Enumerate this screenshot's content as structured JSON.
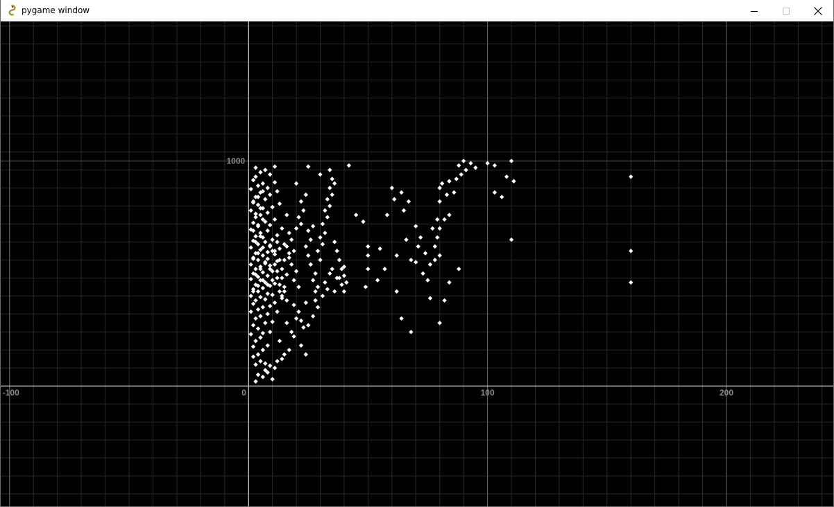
{
  "window": {
    "title": "pygame window",
    "icon": "pygame-snake-icon",
    "controls": {
      "minimize": "minimize-icon",
      "maximize": "maximize-icon",
      "close": "close-icon"
    }
  },
  "chart_data": {
    "type": "scatter",
    "title": "",
    "xlabel": "",
    "ylabel": "",
    "xlim": [
      -104,
      245
    ],
    "ylim": [
      -538,
      1620
    ],
    "x_ticks": [
      -100,
      0,
      100,
      200
    ],
    "y_ticks": [
      1000
    ],
    "grid": true,
    "grid_minor_step_x": 10,
    "grid_minor_step_y": 80,
    "background": "#000000",
    "axis_color": "#ffffff",
    "grid_color": "#2a2a2a",
    "major_grid_color": "#6a6a6a",
    "tick_label_color": "#8a8a8a",
    "point_color": "#ffffff",
    "series": [
      {
        "points": [
          [
            3,
            95
          ],
          [
            5,
            110
          ],
          [
            2,
            130
          ],
          [
            7,
            100
          ],
          [
            4,
            140
          ],
          [
            6,
            160
          ],
          [
            2,
            175
          ],
          [
            8,
            180
          ],
          [
            3,
            200
          ],
          [
            5,
            215
          ],
          [
            1,
            230
          ],
          [
            6,
            235
          ],
          [
            9,
            240
          ],
          [
            4,
            255
          ],
          [
            2,
            270
          ],
          [
            7,
            280
          ],
          [
            10,
            285
          ],
          [
            3,
            300
          ],
          [
            5,
            310
          ],
          [
            8,
            320
          ],
          [
            1,
            330
          ],
          [
            12,
            330
          ],
          [
            4,
            340
          ],
          [
            6,
            350
          ],
          [
            9,
            355
          ],
          [
            2,
            365
          ],
          [
            11,
            370
          ],
          [
            3,
            380
          ],
          [
            7,
            385
          ],
          [
            14,
            390
          ],
          [
            5,
            395
          ],
          [
            1,
            400
          ],
          [
            10,
            405
          ],
          [
            8,
            410
          ],
          [
            4,
            420
          ],
          [
            13,
            420
          ],
          [
            2,
            430
          ],
          [
            6,
            435
          ],
          [
            15,
            440
          ],
          [
            9,
            445
          ],
          [
            3,
            450
          ],
          [
            11,
            455
          ],
          [
            7,
            460
          ],
          [
            5,
            470
          ],
          [
            1,
            475
          ],
          [
            12,
            480
          ],
          [
            4,
            485
          ],
          [
            8,
            490
          ],
          [
            16,
            495
          ],
          [
            2,
            500
          ],
          [
            6,
            505
          ],
          [
            10,
            510
          ],
          [
            3,
            520
          ],
          [
            14,
            520
          ],
          [
            5,
            530
          ],
          [
            9,
            535
          ],
          [
            1,
            540
          ],
          [
            7,
            550
          ],
          [
            12,
            555
          ],
          [
            4,
            560
          ],
          [
            2,
            570
          ],
          [
            17,
            570
          ],
          [
            6,
            580
          ],
          [
            11,
            585
          ],
          [
            3,
            590
          ],
          [
            8,
            595
          ],
          [
            5,
            605
          ],
          [
            13,
            610
          ],
          [
            1,
            615
          ],
          [
            9,
            620
          ],
          [
            4,
            630
          ],
          [
            15,
            630
          ],
          [
            7,
            640
          ],
          [
            2,
            645
          ],
          [
            10,
            650
          ],
          [
            6,
            660
          ],
          [
            3,
            665
          ],
          [
            12,
            670
          ],
          [
            5,
            680
          ],
          [
            8,
            690
          ],
          [
            1,
            695
          ],
          [
            14,
            700
          ],
          [
            4,
            710
          ],
          [
            9,
            715
          ],
          [
            2,
            725
          ],
          [
            7,
            730
          ],
          [
            11,
            740
          ],
          [
            3,
            750
          ],
          [
            5,
            760
          ],
          [
            16,
            760
          ],
          [
            8,
            770
          ],
          [
            1,
            780
          ],
          [
            6,
            790
          ],
          [
            10,
            795
          ],
          [
            4,
            805
          ],
          [
            13,
            810
          ],
          [
            2,
            820
          ],
          [
            7,
            830
          ],
          [
            3,
            840
          ],
          [
            9,
            850
          ],
          [
            5,
            860
          ],
          [
            12,
            865
          ],
          [
            1,
            875
          ],
          [
            8,
            880
          ],
          [
            4,
            890
          ],
          [
            6,
            900
          ],
          [
            11,
            905
          ],
          [
            2,
            915
          ],
          [
            3,
            930
          ],
          [
            9,
            940
          ],
          [
            5,
            950
          ],
          [
            7,
            960
          ],
          [
            3,
            970
          ],
          [
            11,
            975
          ],
          [
            2,
            420
          ],
          [
            4,
            445
          ],
          [
            6,
            470
          ],
          [
            3,
            495
          ],
          [
            5,
            520
          ],
          [
            7,
            545
          ],
          [
            2,
            565
          ],
          [
            4,
            590
          ],
          [
            6,
            615
          ],
          [
            3,
            640
          ],
          [
            5,
            665
          ],
          [
            2,
            690
          ],
          [
            4,
            715
          ],
          [
            6,
            740
          ],
          [
            3,
            765
          ],
          [
            5,
            790
          ],
          [
            2,
            815
          ],
          [
            4,
            840
          ],
          [
            6,
            865
          ],
          [
            8,
            450
          ],
          [
            10,
            470
          ],
          [
            9,
            520
          ],
          [
            11,
            540
          ],
          [
            8,
            565
          ],
          [
            10,
            600
          ],
          [
            9,
            625
          ],
          [
            12,
            640
          ],
          [
            11,
            600
          ],
          [
            13,
            560
          ],
          [
            12,
            510
          ],
          [
            14,
            480
          ],
          [
            13,
            450
          ],
          [
            15,
            420
          ],
          [
            14,
            400
          ],
          [
            16,
            380
          ],
          [
            15,
            560
          ],
          [
            17,
            590
          ],
          [
            16,
            620
          ],
          [
            18,
            650
          ],
          [
            17,
            680
          ],
          [
            19,
            600
          ],
          [
            18,
            540
          ],
          [
            20,
            510
          ],
          [
            19,
            470
          ],
          [
            21,
            440
          ],
          [
            20,
            700
          ],
          [
            22,
            720
          ],
          [
            21,
            750
          ],
          [
            23,
            780
          ],
          [
            22,
            820
          ],
          [
            24,
            850
          ],
          [
            20,
            900
          ],
          [
            25,
            580
          ],
          [
            24,
            620
          ],
          [
            26,
            650
          ],
          [
            25,
            690
          ],
          [
            27,
            710
          ],
          [
            26,
            540
          ],
          [
            28,
            500
          ],
          [
            27,
            470
          ],
          [
            29,
            440
          ],
          [
            28,
            420
          ],
          [
            30,
            560
          ],
          [
            29,
            600
          ],
          [
            31,
            630
          ],
          [
            30,
            660
          ],
          [
            32,
            680
          ],
          [
            31,
            720
          ],
          [
            33,
            750
          ],
          [
            32,
            780
          ],
          [
            34,
            800
          ],
          [
            33,
            830
          ],
          [
            35,
            850
          ],
          [
            34,
            880
          ],
          [
            36,
            900
          ],
          [
            35,
            920
          ],
          [
            30,
            940
          ],
          [
            34,
            960
          ],
          [
            25,
            975
          ],
          [
            26,
            540
          ],
          [
            36,
            640
          ],
          [
            37,
            600
          ],
          [
            38,
            560
          ],
          [
            39,
            520
          ],
          [
            40,
            490
          ],
          [
            41,
            460
          ],
          [
            35,
            520
          ],
          [
            37,
            480
          ],
          [
            39,
            450
          ],
          [
            40,
            420
          ],
          [
            28,
            380
          ],
          [
            31,
            400
          ],
          [
            33,
            430
          ],
          [
            29,
            350
          ],
          [
            24,
            370
          ],
          [
            21,
            330
          ],
          [
            19,
            360
          ],
          [
            27,
            310
          ],
          [
            22,
            290
          ],
          [
            25,
            270
          ],
          [
            36,
            420
          ],
          [
            38,
            480
          ],
          [
            32,
            460
          ],
          [
            34,
            500
          ],
          [
            40,
            530
          ],
          [
            42,
            980
          ],
          [
            45,
            760
          ],
          [
            48,
            730
          ],
          [
            50,
            620
          ],
          [
            50,
            580
          ],
          [
            50,
            520
          ],
          [
            49,
            440
          ],
          [
            54,
            470
          ],
          [
            55,
            610
          ],
          [
            57,
            520
          ],
          [
            60,
            880
          ],
          [
            62,
            580
          ],
          [
            58,
            760
          ],
          [
            61,
            830
          ],
          [
            64,
            860
          ],
          [
            65,
            780
          ],
          [
            67,
            820
          ],
          [
            68,
            560
          ],
          [
            70,
            550
          ],
          [
            66,
            650
          ],
          [
            72,
            660
          ],
          [
            71,
            620
          ],
          [
            74,
            590
          ],
          [
            76,
            540
          ],
          [
            78,
            560
          ],
          [
            80,
            580
          ],
          [
            78,
            620
          ],
          [
            79,
            660
          ],
          [
            80,
            700
          ],
          [
            77,
            700
          ],
          [
            79,
            740
          ],
          [
            82,
            740
          ],
          [
            84,
            760
          ],
          [
            80,
            820
          ],
          [
            83,
            850
          ],
          [
            86,
            860
          ],
          [
            80,
            880
          ],
          [
            81,
            900
          ],
          [
            84,
            910
          ],
          [
            87,
            920
          ],
          [
            89,
            940
          ],
          [
            91,
            960
          ],
          [
            88,
            980
          ],
          [
            90,
            1000
          ],
          [
            93,
            990
          ],
          [
            95,
            970
          ],
          [
            100,
            990
          ],
          [
            103,
            980
          ],
          [
            110,
            1000
          ],
          [
            108,
            930
          ],
          [
            111,
            910
          ],
          [
            103,
            860
          ],
          [
            106,
            840
          ],
          [
            110,
            650
          ],
          [
            160,
            930
          ],
          [
            160,
            600
          ],
          [
            160,
            460
          ],
          [
            70,
            710
          ],
          [
            73,
            500
          ],
          [
            76,
            390
          ],
          [
            62,
            420
          ],
          [
            64,
            300
          ],
          [
            80,
            280
          ],
          [
            68,
            240
          ],
          [
            82,
            380
          ],
          [
            84,
            460
          ],
          [
            88,
            520
          ],
          [
            75,
            470
          ],
          [
            4,
            50
          ],
          [
            7,
            70
          ],
          [
            9,
            90
          ],
          [
            12,
            110
          ],
          [
            15,
            140
          ],
          [
            17,
            160
          ],
          [
            13,
            200
          ],
          [
            18,
            240
          ],
          [
            16,
            280
          ],
          [
            20,
            300
          ],
          [
            23,
            260
          ],
          [
            19,
            220
          ],
          [
            22,
            180
          ],
          [
            24,
            140
          ],
          [
            14,
            120
          ],
          [
            11,
            80
          ],
          [
            8,
            60
          ],
          [
            6,
            40
          ],
          [
            3,
            20
          ],
          [
            10,
            30
          ]
        ]
      }
    ]
  }
}
